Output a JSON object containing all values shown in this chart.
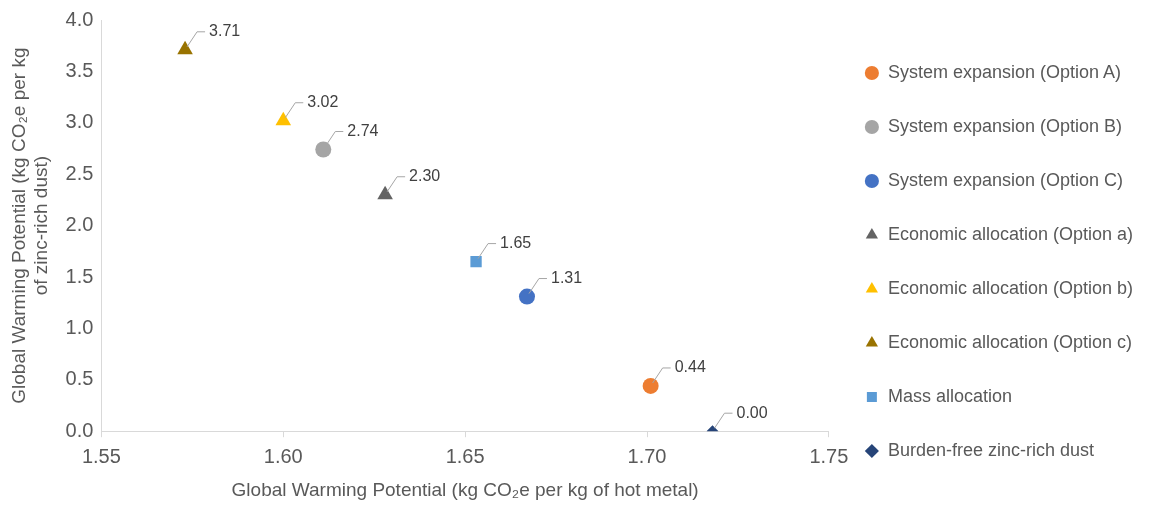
{
  "chart_data": {
    "type": "scatter",
    "xlabel": "Global Warming Potential (kg CO₂e per kg of hot metal)",
    "ylabel": "Global Warming Potential (kg CO₂e per kg of zinc-rich dust)",
    "xlim": [
      1.55,
      1.75
    ],
    "xticks": [
      {
        "value": 1.55,
        "label": "1.55"
      },
      {
        "value": 1.6,
        "label": "1.60"
      },
      {
        "value": 1.65,
        "label": "1.65"
      },
      {
        "value": 1.7,
        "label": "1.70"
      },
      {
        "value": 1.75,
        "label": "1.75"
      }
    ],
    "ylim": [
      0,
      4
    ],
    "yticks": [
      {
        "value": 0,
        "label": "0.0"
      },
      {
        "value": 0.5,
        "label": "0.5"
      },
      {
        "value": 1,
        "label": "1.0"
      },
      {
        "value": 1.5,
        "label": "1.5"
      },
      {
        "value": 2,
        "label": "2.0"
      },
      {
        "value": 2.5,
        "label": "2.5"
      },
      {
        "value": 3,
        "label": "3.0"
      },
      {
        "value": 3.5,
        "label": "3.5"
      },
      {
        "value": 4,
        "label": "4.0"
      }
    ],
    "grid": false,
    "legend": "right",
    "data_labels": true,
    "series": [
      {
        "name": "System expansion (Option A)",
        "color": "#ed7d31",
        "marker": "circle",
        "x": [
          1.701
        ],
        "values": [
          0.44
        ],
        "value_labels": [
          "0.44"
        ]
      },
      {
        "name": "System expansion (Option B)",
        "color": "#a5a5a5",
        "marker": "circle",
        "x": [
          1.611
        ],
        "values": [
          2.74
        ],
        "value_labels": [
          "2.74"
        ]
      },
      {
        "name": "System expansion (Option C)",
        "color": "#4472c4",
        "marker": "circle",
        "x": [
          1.667
        ],
        "values": [
          1.31
        ],
        "value_labels": [
          "1.31"
        ]
      },
      {
        "name": "Economic allocation (Option a)",
        "color": "#636363",
        "marker": "triangle",
        "x": [
          1.628
        ],
        "values": [
          2.3
        ],
        "value_labels": [
          "2.30"
        ]
      },
      {
        "name": "Economic allocation (Option b)",
        "color": "#ffc000",
        "marker": "triangle",
        "x": [
          1.6
        ],
        "values": [
          3.02
        ],
        "value_labels": [
          "3.02"
        ]
      },
      {
        "name": "Economic allocation (Option c)",
        "color": "#997300",
        "marker": "triangle",
        "x": [
          1.573
        ],
        "values": [
          3.71
        ],
        "value_labels": [
          "3.71"
        ]
      },
      {
        "name": "Mass allocation",
        "color": "#5b9bd5",
        "marker": "square",
        "x": [
          1.653
        ],
        "values": [
          1.65
        ],
        "value_labels": [
          "1.65"
        ]
      },
      {
        "name": "Burden-free zinc-rich dust",
        "color": "#264478",
        "marker": "diamond",
        "x": [
          1.718
        ],
        "values": [
          0.0
        ],
        "value_labels": [
          "0.00"
        ]
      }
    ]
  }
}
